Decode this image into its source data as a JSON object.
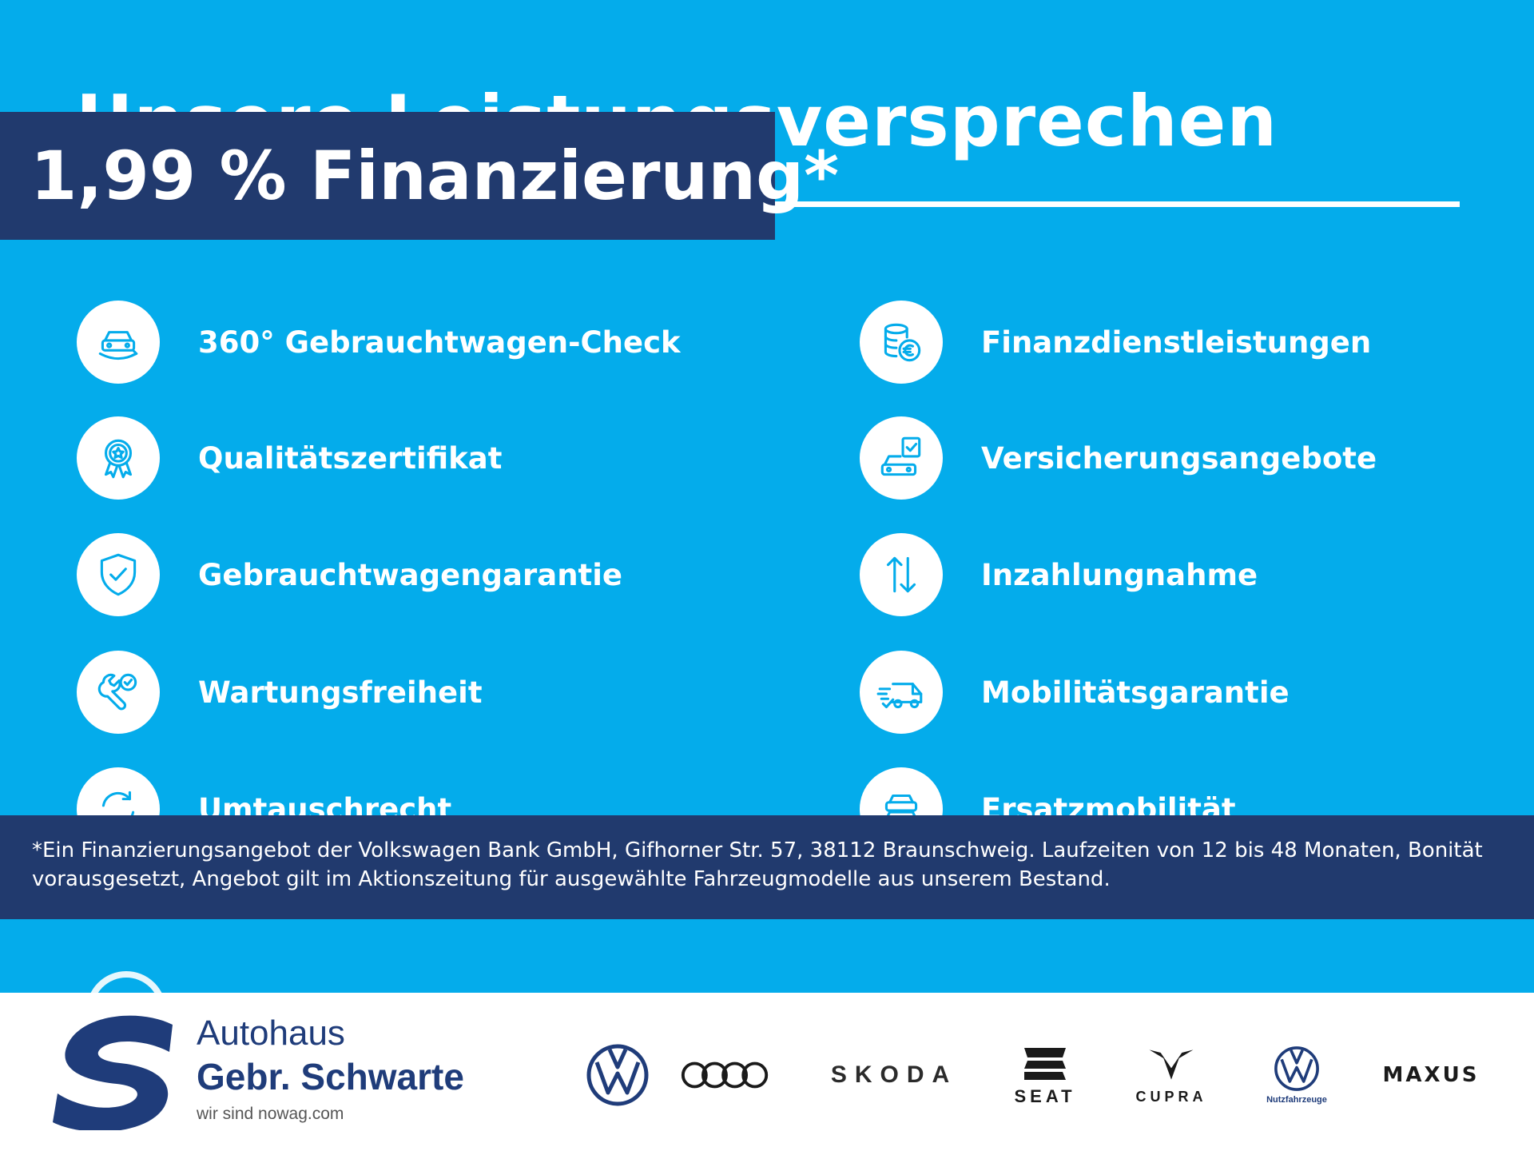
{
  "heading": "Unsere Leistungsversprechen",
  "finance_banner": "1,99 % Finanzierung*",
  "features_left": [
    {
      "label": "360° Gebrauchtwagen-Check",
      "icon": "car-360-icon"
    },
    {
      "label": "Qualitätszertifikat",
      "icon": "certificate-badge-icon"
    },
    {
      "label": "Gebrauchtwagengarantie",
      "icon": "shield-check-icon"
    },
    {
      "label": "Wartungsfreiheit",
      "icon": "wrench-check-icon"
    },
    {
      "label": "Umtauschrecht",
      "icon": "exchange-icon"
    }
  ],
  "features_right": [
    {
      "label": "Finanzdienstleistungen",
      "icon": "coins-euro-icon"
    },
    {
      "label": "Versicherungsangebote",
      "icon": "car-insurance-icon"
    },
    {
      "label": "Inzahlungnahme",
      "icon": "up-down-arrows-icon"
    },
    {
      "label": "Mobilitätsgarantie",
      "icon": "tow-truck-icon"
    },
    {
      "label": "Ersatzmobilität",
      "icon": "replacement-car-icon"
    }
  ],
  "disclaimer": {
    "line1": "*Ein Finanzierungsangebot der Volkswagen Bank GmbH, Gifhorner Str. 57, 38112 Braunschweig. Laufzeiten von 12 bis 48 Monaten, Bonität",
    "line2": "vorausgesetzt, Angebot gilt im Aktionszeitung für ausgewählte Fahrzeugmodelle aus unserem Bestand."
  },
  "dealer": {
    "line1": "Autohaus",
    "line2": "Gebr. Schwarte",
    "tagline": "wir sind nowag.com"
  },
  "brands": {
    "skoda": "SKODA",
    "seat": "SEAT",
    "cupra": "CUPRA",
    "vw_commercial": "Nutzfahrzeuge",
    "maxus": "MAXUS"
  },
  "colors": {
    "background": "#04aceb",
    "navy": "#213a6e",
    "dealer_blue": "#1f3c7a"
  }
}
